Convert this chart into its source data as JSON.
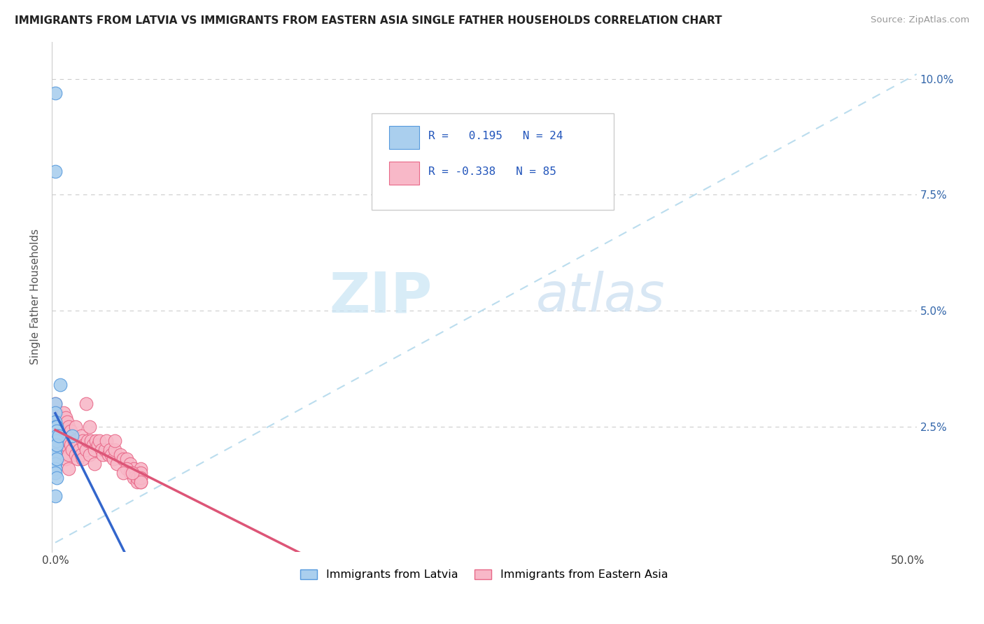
{
  "title": "IMMIGRANTS FROM LATVIA VS IMMIGRANTS FROM EASTERN ASIA SINGLE FATHER HOUSEHOLDS CORRELATION CHART",
  "source": "Source: ZipAtlas.com",
  "ylabel": "Single Father Households",
  "xlim": [
    -0.002,
    0.505
  ],
  "ylim": [
    -0.002,
    0.108
  ],
  "color_latvia": "#aacfee",
  "color_latvia_edge": "#5599dd",
  "color_eastern_asia": "#f8b8c8",
  "color_eastern_asia_edge": "#e86888",
  "color_line_latvia": "#3366cc",
  "color_line_eastern_asia": "#dd5577",
  "color_dashed": "#bbddee",
  "watermark_ZIP": "#c8e4f4",
  "watermark_atlas": "#c8ddf0",
  "label_latvia": "Immigrants from Latvia",
  "label_eastern_asia": "Immigrants from Eastern Asia",
  "legend_R1": " 0.195",
  "legend_N1": "24",
  "legend_R2": "-0.338",
  "legend_N2": "85",
  "latvia_x": [
    0.0,
    0.0,
    0.0,
    0.0,
    0.0,
    0.0,
    0.0,
    0.0,
    0.0,
    0.0,
    0.0,
    0.0,
    0.0,
    0.0,
    0.001,
    0.001,
    0.001,
    0.001,
    0.001,
    0.001,
    0.001,
    0.002,
    0.003,
    0.01
  ],
  "latvia_y": [
    0.097,
    0.08,
    0.03,
    0.028,
    0.026,
    0.025,
    0.022,
    0.021,
    0.02,
    0.019,
    0.017,
    0.016,
    0.015,
    0.01,
    0.025,
    0.024,
    0.023,
    0.022,
    0.021,
    0.018,
    0.014,
    0.023,
    0.034,
    0.023
  ],
  "ea_x": [
    0.0,
    0.001,
    0.001,
    0.001,
    0.002,
    0.002,
    0.002,
    0.003,
    0.003,
    0.003,
    0.004,
    0.004,
    0.004,
    0.005,
    0.005,
    0.005,
    0.005,
    0.006,
    0.006,
    0.006,
    0.006,
    0.007,
    0.007,
    0.008,
    0.008,
    0.008,
    0.008,
    0.009,
    0.009,
    0.01,
    0.01,
    0.011,
    0.012,
    0.012,
    0.012,
    0.013,
    0.013,
    0.014,
    0.015,
    0.015,
    0.016,
    0.016,
    0.017,
    0.018,
    0.018,
    0.019,
    0.02,
    0.02,
    0.021,
    0.022,
    0.023,
    0.023,
    0.024,
    0.025,
    0.026,
    0.027,
    0.028,
    0.029,
    0.03,
    0.031,
    0.032,
    0.033,
    0.034,
    0.035,
    0.036,
    0.038,
    0.04,
    0.042,
    0.044,
    0.046,
    0.048,
    0.05,
    0.042,
    0.044,
    0.046,
    0.048,
    0.05,
    0.048,
    0.05,
    0.05,
    0.05,
    0.05,
    0.035,
    0.04,
    0.045
  ],
  "ea_y": [
    0.03,
    0.028,
    0.025,
    0.022,
    0.027,
    0.024,
    0.021,
    0.026,
    0.023,
    0.02,
    0.025,
    0.022,
    0.019,
    0.028,
    0.025,
    0.022,
    0.019,
    0.027,
    0.024,
    0.021,
    0.018,
    0.026,
    0.022,
    0.025,
    0.022,
    0.019,
    0.016,
    0.024,
    0.021,
    0.023,
    0.02,
    0.022,
    0.025,
    0.022,
    0.019,
    0.021,
    0.018,
    0.02,
    0.023,
    0.019,
    0.022,
    0.018,
    0.021,
    0.03,
    0.02,
    0.022,
    0.025,
    0.019,
    0.022,
    0.021,
    0.02,
    0.017,
    0.022,
    0.021,
    0.022,
    0.02,
    0.019,
    0.02,
    0.022,
    0.019,
    0.02,
    0.019,
    0.018,
    0.02,
    0.017,
    0.019,
    0.018,
    0.018,
    0.017,
    0.016,
    0.015,
    0.016,
    0.016,
    0.015,
    0.014,
    0.013,
    0.014,
    0.014,
    0.013,
    0.015,
    0.014,
    0.013,
    0.022,
    0.015,
    0.015
  ]
}
